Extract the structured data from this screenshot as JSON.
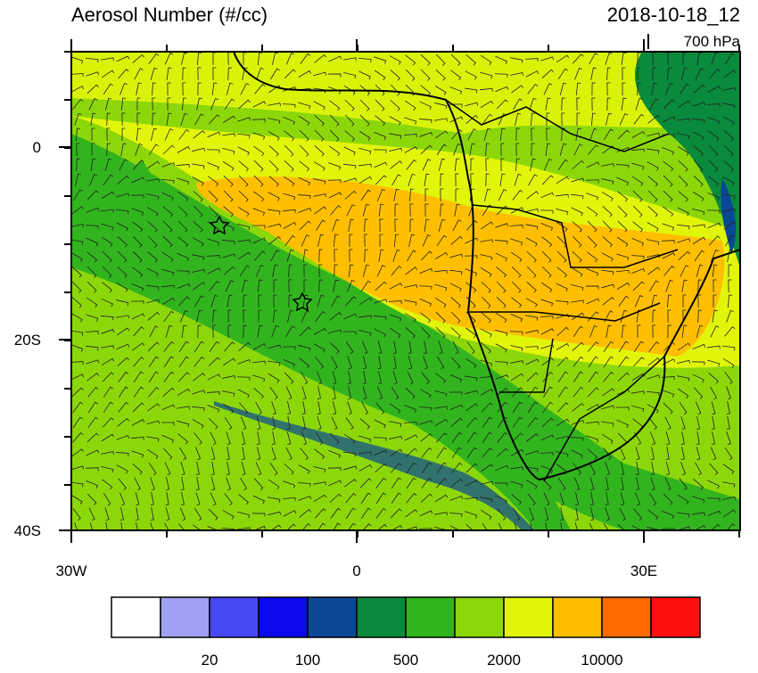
{
  "header": {
    "title": "Aerosol Number (#/cc)",
    "date": "2018-10-18_12",
    "level": "700 hPa"
  },
  "map": {
    "lat_labels": [
      "0",
      "20S",
      "40S"
    ],
    "lon_labels": [
      "30W",
      "0",
      "30E"
    ]
  },
  "colorbar": {
    "colors": [
      "#ffffff",
      "#a0a0f5",
      "#4848f5",
      "#0a0aec",
      "#0a4896",
      "#0a8a3c",
      "#32b41e",
      "#8cd70a",
      "#e1f50a",
      "#ffbf00",
      "#ff6a00",
      "#ff1010"
    ],
    "labels": [
      "20",
      "100",
      "500",
      "2000",
      "10000"
    ]
  }
}
